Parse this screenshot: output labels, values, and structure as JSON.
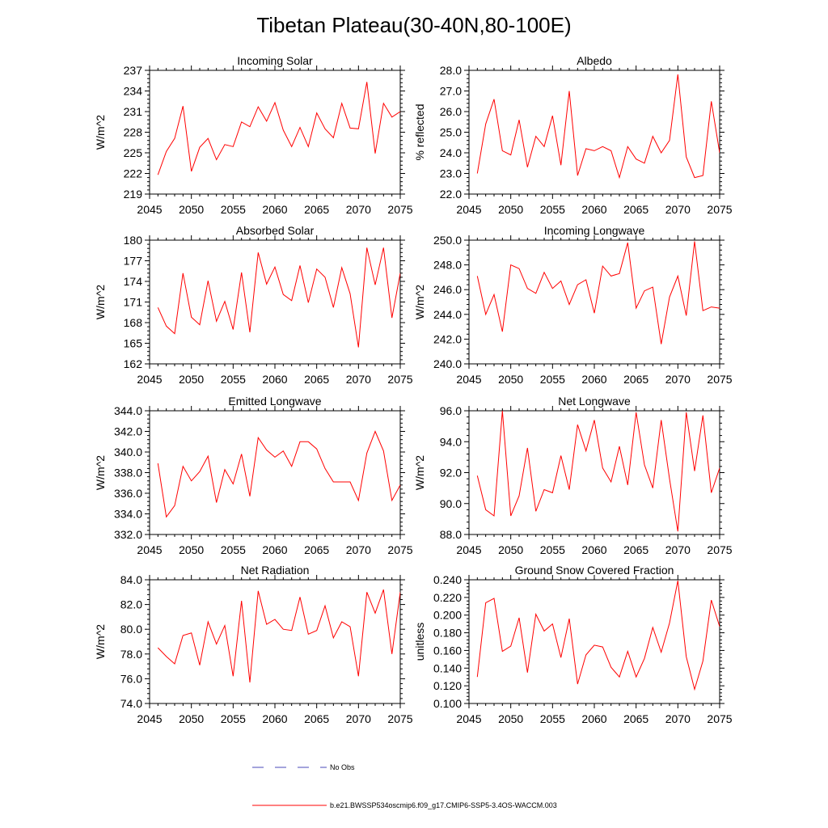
{
  "figure_title": "Tibetan Plateau(30-40N,80-100E)",
  "colors": {
    "model": "#ff0000",
    "obs": "#4a4ab8",
    "frame": "#000000"
  },
  "legend": {
    "obs_label": "No Obs",
    "model_label": "b.e21.BWSSP534oscmip6.f09_g17.CMIP6-SSP5-3.4OS-WACCM.003"
  },
  "chart_data": [
    {
      "type": "line",
      "title": "Incoming Solar",
      "ylabel": "W/m^2",
      "xlim": [
        2045,
        2075
      ],
      "xticks": [
        2045,
        2050,
        2055,
        2060,
        2065,
        2070,
        2075
      ],
      "ylim": [
        219,
        237
      ],
      "yticks": [
        "219",
        "222",
        "225",
        "228",
        "231",
        "234",
        "237"
      ],
      "x": [
        2046,
        2047,
        2048,
        2049,
        2050,
        2051,
        2052,
        2053,
        2054,
        2055,
        2056,
        2057,
        2058,
        2059,
        2060,
        2061,
        2062,
        2063,
        2064,
        2065,
        2066,
        2067,
        2068,
        2069,
        2070,
        2071,
        2072,
        2073,
        2074,
        2075
      ],
      "values": [
        221.8,
        225.2,
        227.1,
        231.8,
        222.3,
        225.8,
        227.1,
        224.0,
        226.2,
        225.9,
        229.5,
        228.8,
        231.7,
        229.6,
        232.3,
        228.3,
        225.9,
        228.7,
        225.9,
        230.8,
        228.5,
        227.2,
        232.2,
        228.6,
        228.5,
        235.3,
        224.9,
        232.2,
        230.2,
        231.0
      ]
    },
    {
      "type": "line",
      "title": "Albedo",
      "ylabel": "% reflected",
      "xlim": [
        2045,
        2075
      ],
      "xticks": [
        2045,
        2050,
        2055,
        2060,
        2065,
        2070,
        2075
      ],
      "ylim": [
        22.0,
        28.0
      ],
      "yticks": [
        "22.0",
        "23.0",
        "24.0",
        "25.0",
        "26.0",
        "27.0",
        "28.0"
      ],
      "x": [
        2046,
        2047,
        2048,
        2049,
        2050,
        2051,
        2052,
        2053,
        2054,
        2055,
        2056,
        2057,
        2058,
        2059,
        2060,
        2061,
        2062,
        2063,
        2064,
        2065,
        2066,
        2067,
        2068,
        2069,
        2070,
        2071,
        2072,
        2073,
        2074,
        2075
      ],
      "values": [
        23.0,
        25.4,
        26.6,
        24.1,
        23.9,
        25.6,
        23.3,
        24.8,
        24.3,
        25.8,
        23.4,
        27.0,
        22.9,
        24.2,
        24.1,
        24.3,
        24.1,
        22.8,
        24.3,
        23.7,
        23.5,
        24.8,
        24.0,
        24.6,
        27.8,
        23.8,
        22.8,
        22.9,
        26.5,
        24.0
      ]
    },
    {
      "type": "line",
      "title": "Absorbed Solar",
      "ylabel": "W/m^2",
      "xlim": [
        2045,
        2075
      ],
      "xticks": [
        2045,
        2050,
        2055,
        2060,
        2065,
        2070,
        2075
      ],
      "ylim": [
        162,
        180
      ],
      "yticks": [
        "162",
        "165",
        "168",
        "171",
        "174",
        "177",
        "180"
      ],
      "x": [
        2046,
        2047,
        2048,
        2049,
        2050,
        2051,
        2052,
        2053,
        2054,
        2055,
        2056,
        2057,
        2058,
        2059,
        2060,
        2061,
        2062,
        2063,
        2064,
        2065,
        2066,
        2067,
        2068,
        2069,
        2070,
        2071,
        2072,
        2073,
        2074,
        2075
      ],
      "values": [
        170.2,
        167.5,
        166.4,
        175.2,
        168.8,
        167.7,
        174.1,
        168.2,
        171.1,
        167.0,
        175.3,
        166.6,
        178.2,
        173.6,
        176.1,
        172.1,
        171.2,
        176.3,
        170.9,
        175.8,
        174.6,
        170.2,
        176.0,
        172.2,
        164.4,
        178.9,
        173.5,
        178.9,
        168.7,
        175.2
      ]
    },
    {
      "type": "line",
      "title": "Incoming Longwave",
      "ylabel": "W/m^2",
      "xlim": [
        2045,
        2075
      ],
      "xticks": [
        2045,
        2050,
        2055,
        2060,
        2065,
        2070,
        2075
      ],
      "ylim": [
        240.0,
        250.0
      ],
      "yticks": [
        "240.0",
        "242.0",
        "244.0",
        "246.0",
        "248.0",
        "250.0"
      ],
      "x": [
        2046,
        2047,
        2048,
        2049,
        2050,
        2051,
        2052,
        2053,
        2054,
        2055,
        2056,
        2057,
        2058,
        2059,
        2060,
        2061,
        2062,
        2063,
        2064,
        2065,
        2066,
        2067,
        2068,
        2069,
        2070,
        2071,
        2072,
        2073,
        2074,
        2075
      ],
      "values": [
        247.1,
        244.0,
        245.6,
        242.6,
        248.0,
        247.7,
        246.1,
        245.7,
        247.4,
        246.1,
        246.7,
        244.8,
        246.4,
        246.8,
        244.1,
        247.9,
        247.1,
        247.3,
        249.8,
        244.5,
        245.9,
        246.2,
        241.6,
        245.4,
        247.1,
        243.9,
        249.9,
        244.3,
        244.6,
        244.5
      ]
    },
    {
      "type": "line",
      "title": "Emitted Longwave",
      "ylabel": "W/m^2",
      "xlim": [
        2045,
        2075
      ],
      "xticks": [
        2045,
        2050,
        2055,
        2060,
        2065,
        2070,
        2075
      ],
      "ylim": [
        332.0,
        344.0
      ],
      "yticks": [
        "332.0",
        "334.0",
        "336.0",
        "338.0",
        "340.0",
        "342.0",
        "344.0"
      ],
      "x": [
        2046,
        2047,
        2048,
        2049,
        2050,
        2051,
        2052,
        2053,
        2054,
        2055,
        2056,
        2057,
        2058,
        2059,
        2060,
        2061,
        2062,
        2063,
        2064,
        2065,
        2066,
        2067,
        2068,
        2069,
        2070,
        2071,
        2072,
        2073,
        2074,
        2075
      ],
      "values": [
        338.9,
        333.7,
        334.8,
        338.6,
        337.2,
        338.1,
        339.6,
        335.1,
        338.3,
        336.9,
        339.8,
        335.7,
        341.4,
        340.2,
        339.5,
        340.1,
        338.6,
        341.0,
        341.0,
        340.3,
        338.4,
        337.1,
        337.1,
        337.1,
        335.3,
        339.9,
        342.0,
        340.1,
        335.3,
        336.8
      ]
    },
    {
      "type": "line",
      "title": "Net Longwave",
      "ylabel": "W/m^2",
      "xlim": [
        2045,
        2075
      ],
      "xticks": [
        2045,
        2050,
        2055,
        2060,
        2065,
        2070,
        2075
      ],
      "ylim": [
        88.0,
        96.0
      ],
      "yticks": [
        "88.0",
        "90.0",
        "92.0",
        "94.0",
        "96.0"
      ],
      "x": [
        2046,
        2047,
        2048,
        2049,
        2050,
        2051,
        2052,
        2053,
        2054,
        2055,
        2056,
        2057,
        2058,
        2059,
        2060,
        2061,
        2062,
        2063,
        2064,
        2065,
        2066,
        2067,
        2068,
        2069,
        2070,
        2071,
        2072,
        2073,
        2074,
        2075
      ],
      "values": [
        91.8,
        89.6,
        89.2,
        96.0,
        89.2,
        90.5,
        93.6,
        89.5,
        90.9,
        90.7,
        93.1,
        90.9,
        95.1,
        93.4,
        95.4,
        92.3,
        91.4,
        93.7,
        91.2,
        95.9,
        92.5,
        91.0,
        95.4,
        91.6,
        88.2,
        95.9,
        92.1,
        95.7,
        90.7,
        92.3
      ]
    },
    {
      "type": "line",
      "title": "Net Radiation",
      "ylabel": "W/m^2",
      "xlim": [
        2045,
        2075
      ],
      "xticks": [
        2045,
        2050,
        2055,
        2060,
        2065,
        2070,
        2075
      ],
      "ylim": [
        74.0,
        84.0
      ],
      "yticks": [
        "74.0",
        "76.0",
        "78.0",
        "80.0",
        "82.0",
        "84.0"
      ],
      "x": [
        2046,
        2047,
        2048,
        2049,
        2050,
        2051,
        2052,
        2053,
        2054,
        2055,
        2056,
        2057,
        2058,
        2059,
        2060,
        2061,
        2062,
        2063,
        2064,
        2065,
        2066,
        2067,
        2068,
        2069,
        2070,
        2071,
        2072,
        2073,
        2074,
        2075
      ],
      "values": [
        78.5,
        77.8,
        77.2,
        79.5,
        79.7,
        77.1,
        80.6,
        78.8,
        80.3,
        76.2,
        82.3,
        75.7,
        83.1,
        80.4,
        80.8,
        80.0,
        79.9,
        82.6,
        79.6,
        79.9,
        81.9,
        79.3,
        80.6,
        80.2,
        76.2,
        83.0,
        81.3,
        83.2,
        78.0,
        83.0
      ]
    },
    {
      "type": "line",
      "title": "Ground Snow Covered Fraction",
      "ylabel": "unitless",
      "xlim": [
        2045,
        2075
      ],
      "xticks": [
        2045,
        2050,
        2055,
        2060,
        2065,
        2070,
        2075
      ],
      "ylim": [
        0.1,
        0.24
      ],
      "yticks": [
        "0.100",
        "0.120",
        "0.140",
        "0.160",
        "0.180",
        "0.200",
        "0.220",
        "0.240"
      ],
      "x": [
        2046,
        2047,
        2048,
        2049,
        2050,
        2051,
        2052,
        2053,
        2054,
        2055,
        2056,
        2057,
        2058,
        2059,
        2060,
        2061,
        2062,
        2063,
        2064,
        2065,
        2066,
        2067,
        2068,
        2069,
        2070,
        2071,
        2072,
        2073,
        2074,
        2075
      ],
      "values": [
        0.13,
        0.214,
        0.219,
        0.159,
        0.165,
        0.197,
        0.135,
        0.201,
        0.182,
        0.19,
        0.152,
        0.196,
        0.122,
        0.155,
        0.166,
        0.164,
        0.141,
        0.13,
        0.159,
        0.13,
        0.151,
        0.186,
        0.158,
        0.191,
        0.239,
        0.153,
        0.116,
        0.148,
        0.217,
        0.187
      ]
    }
  ]
}
